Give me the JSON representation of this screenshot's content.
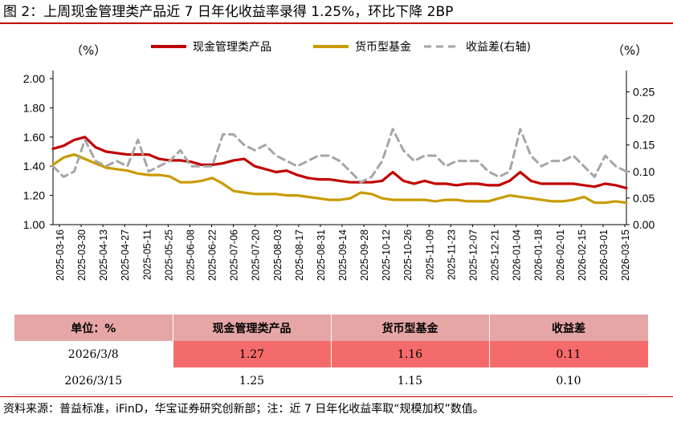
{
  "figure": {
    "title": "图 2：上周现金管理类产品近 7 日年化收益率录得 1.25%，环比下降 2BP",
    "footer": "资料来源：普益标准，iFinD，华宝证券研究创新部；注：近 7 日年化收益率取“规模加权”数值。"
  },
  "chart_data": {
    "type": "line",
    "left_unit": "（%）",
    "right_unit": "（%）",
    "left_ylim": [
      1.0,
      2.0
    ],
    "left_yticks": [
      "1.00",
      "1.20",
      "1.40",
      "1.60",
      "1.80",
      "2.00"
    ],
    "right_ylim": [
      0.0,
      0.275
    ],
    "right_yticks": [
      "0.00",
      "0.05",
      "0.10",
      "0.15",
      "0.20",
      "0.25"
    ],
    "x_tick_labels": [
      "2025-03-16",
      "2025-03-30",
      "2025-04-13",
      "2025-04-27",
      "2025-05-11",
      "2025-05-25",
      "2025-06-08",
      "2025-06-22",
      "2025-07-06",
      "2025-07-20",
      "2025-08-03",
      "2025-08-17",
      "2025-08-31",
      "2025-09-14",
      "2025-09-28",
      "2025-10-12",
      "2025-10-26",
      "2025-11-09",
      "2025-11-23",
      "2025-12-07",
      "2025-12-21",
      "2026-01-04",
      "2026-01-18",
      "2026-02-01",
      "2026-02-15",
      "2026-03-01",
      "2026-03-15"
    ],
    "legend_position": "top",
    "grid": false,
    "series": [
      {
        "name": "现金管理类产品",
        "color": "#c00000",
        "axis": "left",
        "dashed": false,
        "values": [
          1.52,
          1.54,
          1.58,
          1.6,
          1.53,
          1.5,
          1.49,
          1.48,
          1.48,
          1.48,
          1.45,
          1.44,
          1.44,
          1.43,
          1.41,
          1.41,
          1.42,
          1.44,
          1.45,
          1.4,
          1.38,
          1.36,
          1.37,
          1.34,
          1.32,
          1.31,
          1.31,
          1.3,
          1.29,
          1.29,
          1.29,
          1.3,
          1.36,
          1.3,
          1.28,
          1.3,
          1.28,
          1.28,
          1.27,
          1.28,
          1.28,
          1.27,
          1.27,
          1.3,
          1.36,
          1.3,
          1.28,
          1.28,
          1.28,
          1.28,
          1.27,
          1.26,
          1.28,
          1.27,
          1.25
        ]
      },
      {
        "name": "货币型基金",
        "color": "#c89b00",
        "axis": "left",
        "dashed": false,
        "values": [
          1.41,
          1.46,
          1.48,
          1.45,
          1.42,
          1.39,
          1.38,
          1.37,
          1.35,
          1.34,
          1.34,
          1.33,
          1.29,
          1.29,
          1.3,
          1.32,
          1.28,
          1.23,
          1.22,
          1.21,
          1.21,
          1.21,
          1.2,
          1.2,
          1.19,
          1.18,
          1.17,
          1.17,
          1.18,
          1.22,
          1.21,
          1.18,
          1.17,
          1.17,
          1.17,
          1.17,
          1.16,
          1.17,
          1.17,
          1.16,
          1.16,
          1.16,
          1.18,
          1.2,
          1.19,
          1.18,
          1.17,
          1.16,
          1.16,
          1.17,
          1.19,
          1.15,
          1.15,
          1.16,
          1.15
        ]
      },
      {
        "name": "收益差(右轴)",
        "color": "#a6a6a6",
        "axis": "right",
        "dashed": true,
        "values": [
          0.11,
          0.09,
          0.1,
          0.16,
          0.12,
          0.11,
          0.12,
          0.11,
          0.16,
          0.1,
          0.11,
          0.12,
          0.14,
          0.11,
          0.11,
          0.11,
          0.17,
          0.17,
          0.15,
          0.14,
          0.15,
          0.13,
          0.12,
          0.11,
          0.12,
          0.13,
          0.13,
          0.12,
          0.1,
          0.08,
          0.09,
          0.12,
          0.18,
          0.14,
          0.12,
          0.13,
          0.13,
          0.11,
          0.12,
          0.12,
          0.12,
          0.1,
          0.09,
          0.1,
          0.18,
          0.13,
          0.11,
          0.12,
          0.12,
          0.13,
          0.11,
          0.09,
          0.13,
          0.11,
          0.1
        ]
      }
    ]
  },
  "table": {
    "headers": [
      "单位：%",
      "现金管理类产品",
      "货币型基金",
      "收益差"
    ],
    "rows": [
      [
        "2026/3/8",
        "1.27",
        "1.16",
        "0.11"
      ],
      [
        "2026/3/15",
        "1.25",
        "1.15",
        "0.10"
      ]
    ]
  }
}
